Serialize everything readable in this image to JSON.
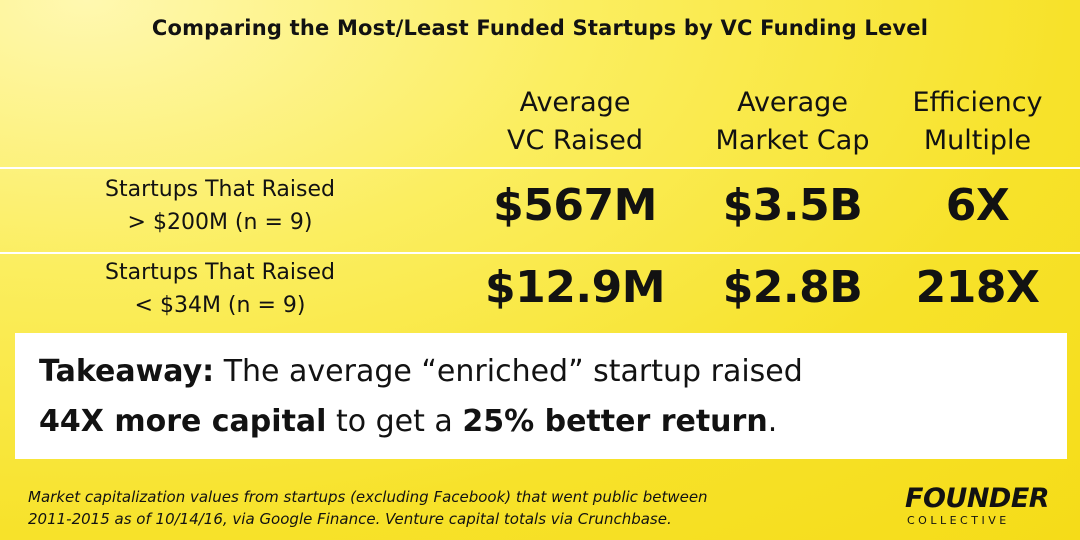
{
  "title": "Comparing the Most/Least Funded Startups by VC Funding Level",
  "chart_data": {
    "type": "table",
    "columns": [
      {
        "line1": "Average",
        "line2": "VC Raised"
      },
      {
        "line1": "Average",
        "line2": "Market Cap"
      },
      {
        "line1": "Efficiency",
        "line2": "Multiple"
      }
    ],
    "rows": [
      {
        "label_line1": "Startups That Raised",
        "label_line2": "> $200M (n = 9)",
        "values": [
          "$567M",
          "$3.5B",
          "6X"
        ]
      },
      {
        "label_line1": "Startups That Raised",
        "label_line2": "< $34M (n = 9)",
        "values": [
          "$12.9M",
          "$2.8B",
          "218X"
        ]
      }
    ]
  },
  "takeaway": {
    "label": "Takeaway:",
    "line1_rest": " The average “enriched” startup raised",
    "bold1": "44X more capital",
    "mid": " to get a ",
    "bold2": "25% better return",
    "end": "."
  },
  "footnote": {
    "line1": "Market capitalization values from startups (excluding Facebook) that went public between",
    "line2": "2011-2015 as of 10/14/16, via Google Finance. Venture capital totals via Crunchbase."
  },
  "logo": {
    "main": "FOUNDER",
    "sub": "COLLECTIVE"
  }
}
